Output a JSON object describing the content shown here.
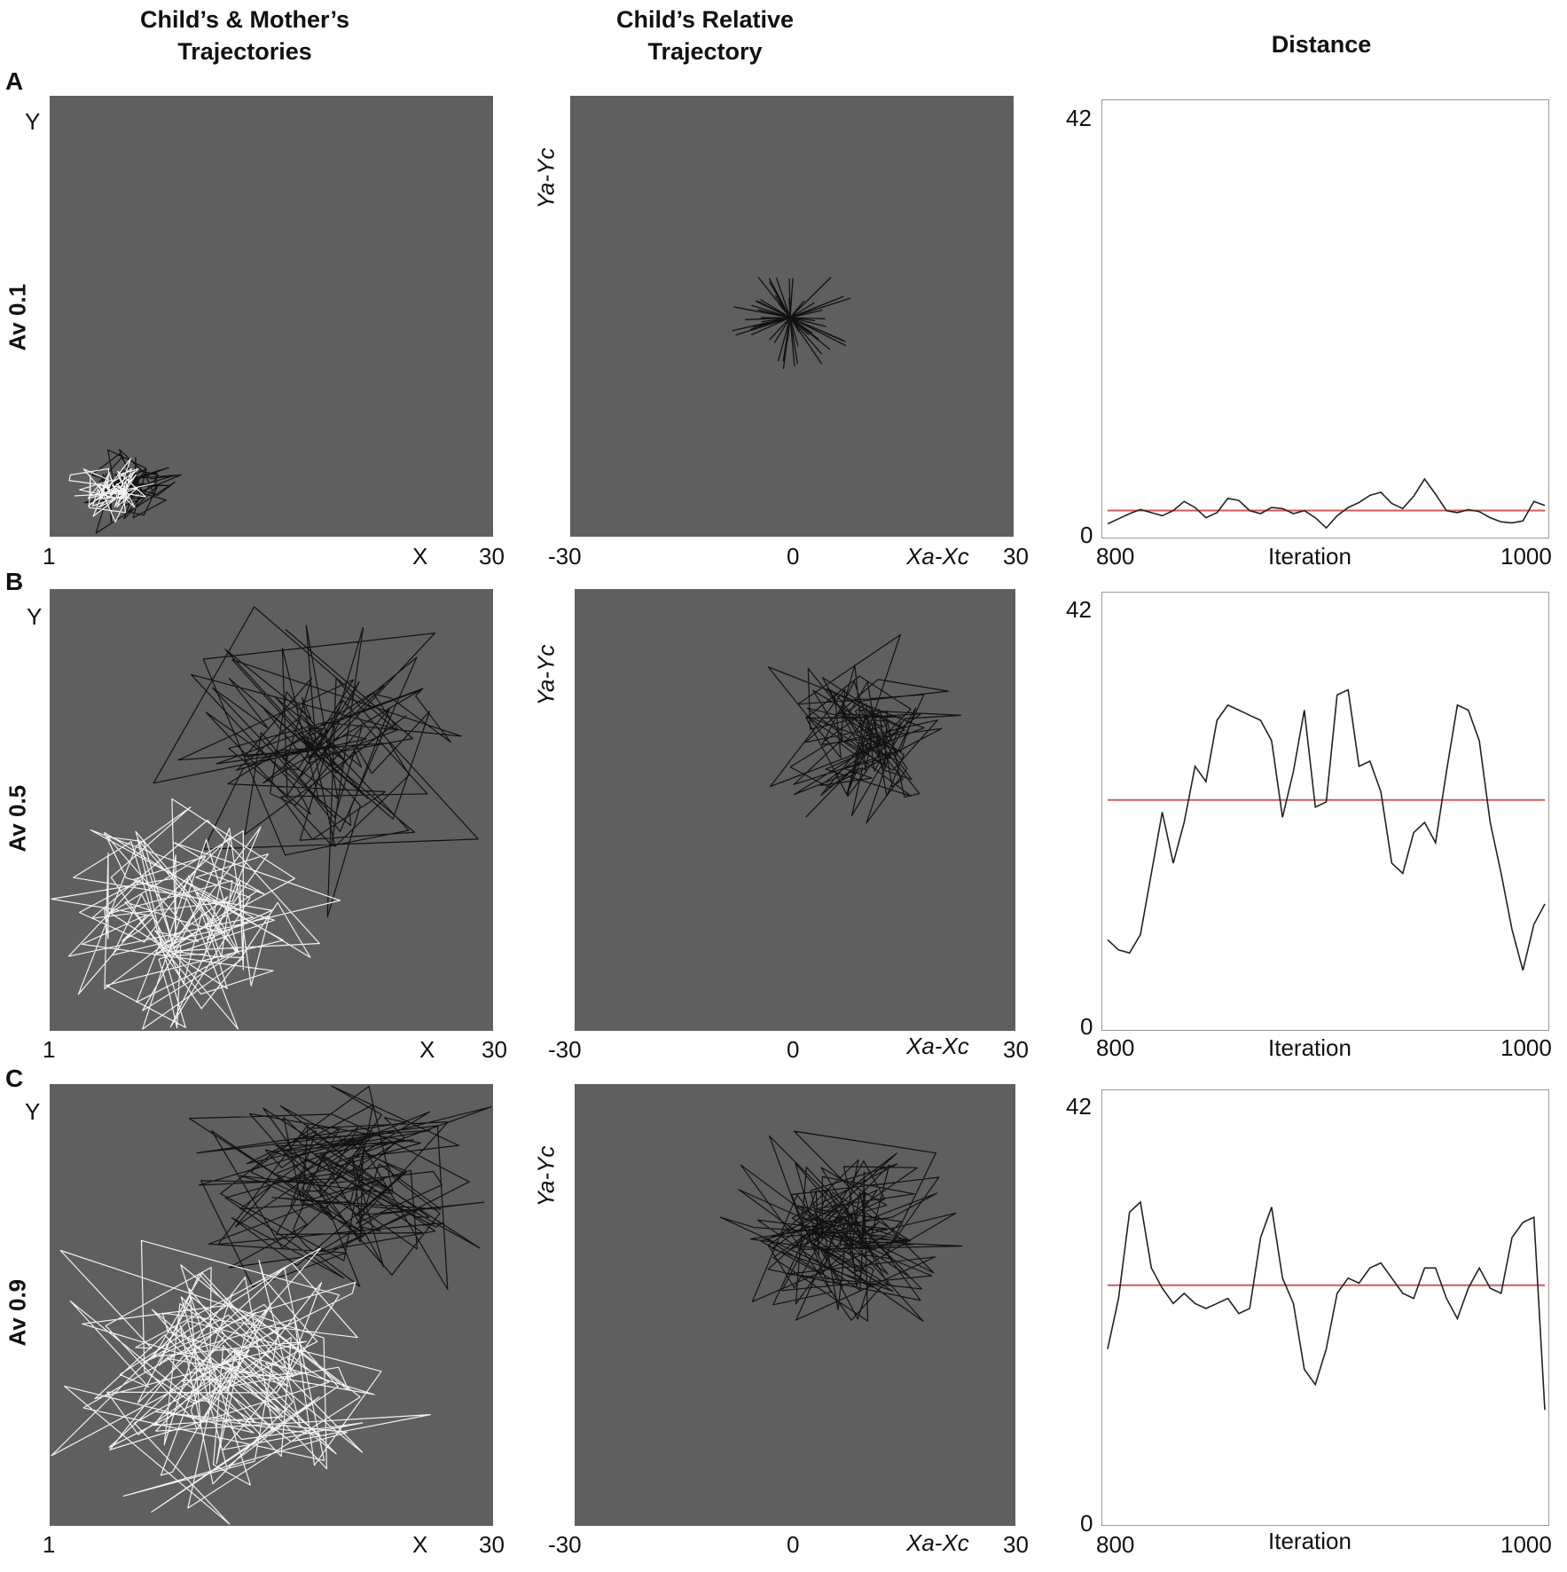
{
  "columns": {
    "col1_line1": "Child’s & Mother’s",
    "col1_line2": "Trajectories",
    "col2_line1": "Child’s Relative",
    "col2_line2": "Trajectory",
    "col3": "Distance"
  },
  "axes": {
    "abs_x_min": "1",
    "abs_x_label": "X",
    "abs_x_max": "30",
    "abs_y_label": "Y",
    "rel_x_min": "-30",
    "rel_x_zero": "0",
    "rel_x_label": "Xa-Xc",
    "rel_x_max": "30",
    "rel_y_label": "Ya-Yc",
    "dist_x_min": "800",
    "dist_x_label": "Iteration",
    "dist_x_max": "1000",
    "dist_y_max": "42",
    "dist_y_min": "0"
  },
  "rows": [
    {
      "letter": "A",
      "label": "Av 0.1"
    },
    {
      "letter": "B",
      "label": "Av 0.5"
    },
    {
      "letter": "C",
      "label": "Av 0.9"
    }
  ],
  "colors": {
    "panel_bg": "#5f5f5f",
    "child": "#111111",
    "mother": "#f2f2f2",
    "distance": "#222222",
    "mean": "#d05a5a"
  },
  "chart_data": [
    {
      "type": "line",
      "title": "Distance",
      "row": "A",
      "xlabel": "Iteration",
      "ylabel": "",
      "xlim": [
        800,
        1000
      ],
      "ylim": [
        0,
        42
      ],
      "x": [
        800,
        805,
        810,
        815,
        820,
        825,
        830,
        835,
        840,
        845,
        850,
        855,
        860,
        865,
        870,
        875,
        880,
        885,
        890,
        895,
        900,
        905,
        910,
        915,
        920,
        925,
        930,
        935,
        940,
        945,
        950,
        955,
        960,
        965,
        970,
        975,
        980,
        985,
        990,
        995,
        1000
      ],
      "values": [
        1,
        1.5,
        2,
        2.4,
        2.1,
        1.8,
        2.3,
        3.2,
        2.6,
        1.6,
        2.1,
        3.5,
        3.3,
        2.3,
        2.0,
        2.6,
        2.5,
        2.0,
        2.3,
        1.6,
        0.6,
        1.8,
        2.6,
        3.1,
        3.8,
        4.1,
        3.0,
        2.5,
        3.7,
        5.4,
        3.9,
        2.3,
        2.1,
        2.4,
        2.2,
        1.6,
        1.2,
        1.1,
        1.3,
        3.2,
        2.8
      ],
      "mean": 2.3
    },
    {
      "type": "line",
      "title": "Distance",
      "row": "B",
      "xlabel": "Iteration",
      "ylabel": "",
      "xlim": [
        800,
        1000
      ],
      "ylim": [
        0,
        42
      ],
      "x": [
        800,
        805,
        810,
        815,
        820,
        825,
        830,
        835,
        840,
        845,
        850,
        855,
        860,
        865,
        870,
        875,
        880,
        885,
        890,
        895,
        900,
        905,
        910,
        915,
        920,
        925,
        930,
        935,
        940,
        945,
        950,
        955,
        960,
        965,
        970,
        975,
        980,
        985,
        990,
        995,
        1000
      ],
      "values": [
        8.5,
        7.5,
        7.2,
        9,
        15,
        21,
        16,
        20,
        25.5,
        24,
        30,
        31.5,
        31,
        30.5,
        30,
        28,
        20.5,
        25,
        31,
        21.5,
        22,
        32.5,
        33,
        25.5,
        26,
        23,
        16,
        15,
        19,
        20,
        18,
        25,
        31.5,
        31,
        28,
        20,
        15,
        9.5,
        5.5,
        10,
        12
      ],
      "mean": 22.2
    },
    {
      "type": "line",
      "title": "Distance",
      "row": "C",
      "xlabel": "Iteration",
      "ylabel": "",
      "xlim": [
        800,
        1000
      ],
      "ylim": [
        0,
        42
      ],
      "x": [
        800,
        805,
        810,
        815,
        820,
        825,
        830,
        835,
        840,
        845,
        850,
        855,
        860,
        865,
        870,
        875,
        880,
        885,
        890,
        895,
        900,
        905,
        910,
        915,
        920,
        925,
        930,
        935,
        940,
        945,
        950,
        955,
        960,
        965,
        970,
        975,
        980,
        985,
        990,
        995,
        1000
      ],
      "values": [
        17,
        22,
        30.5,
        31.5,
        25,
        23,
        21.5,
        22.5,
        21.5,
        21,
        21.5,
        22,
        20.5,
        21,
        28,
        31,
        24,
        21.5,
        15,
        13.5,
        17,
        22.5,
        24,
        23.5,
        25,
        25.5,
        24,
        22.5,
        22,
        25,
        25,
        22,
        20,
        23,
        25,
        23,
        22.5,
        28,
        29.5,
        30,
        11
      ],
      "mean": 23.3
    }
  ]
}
